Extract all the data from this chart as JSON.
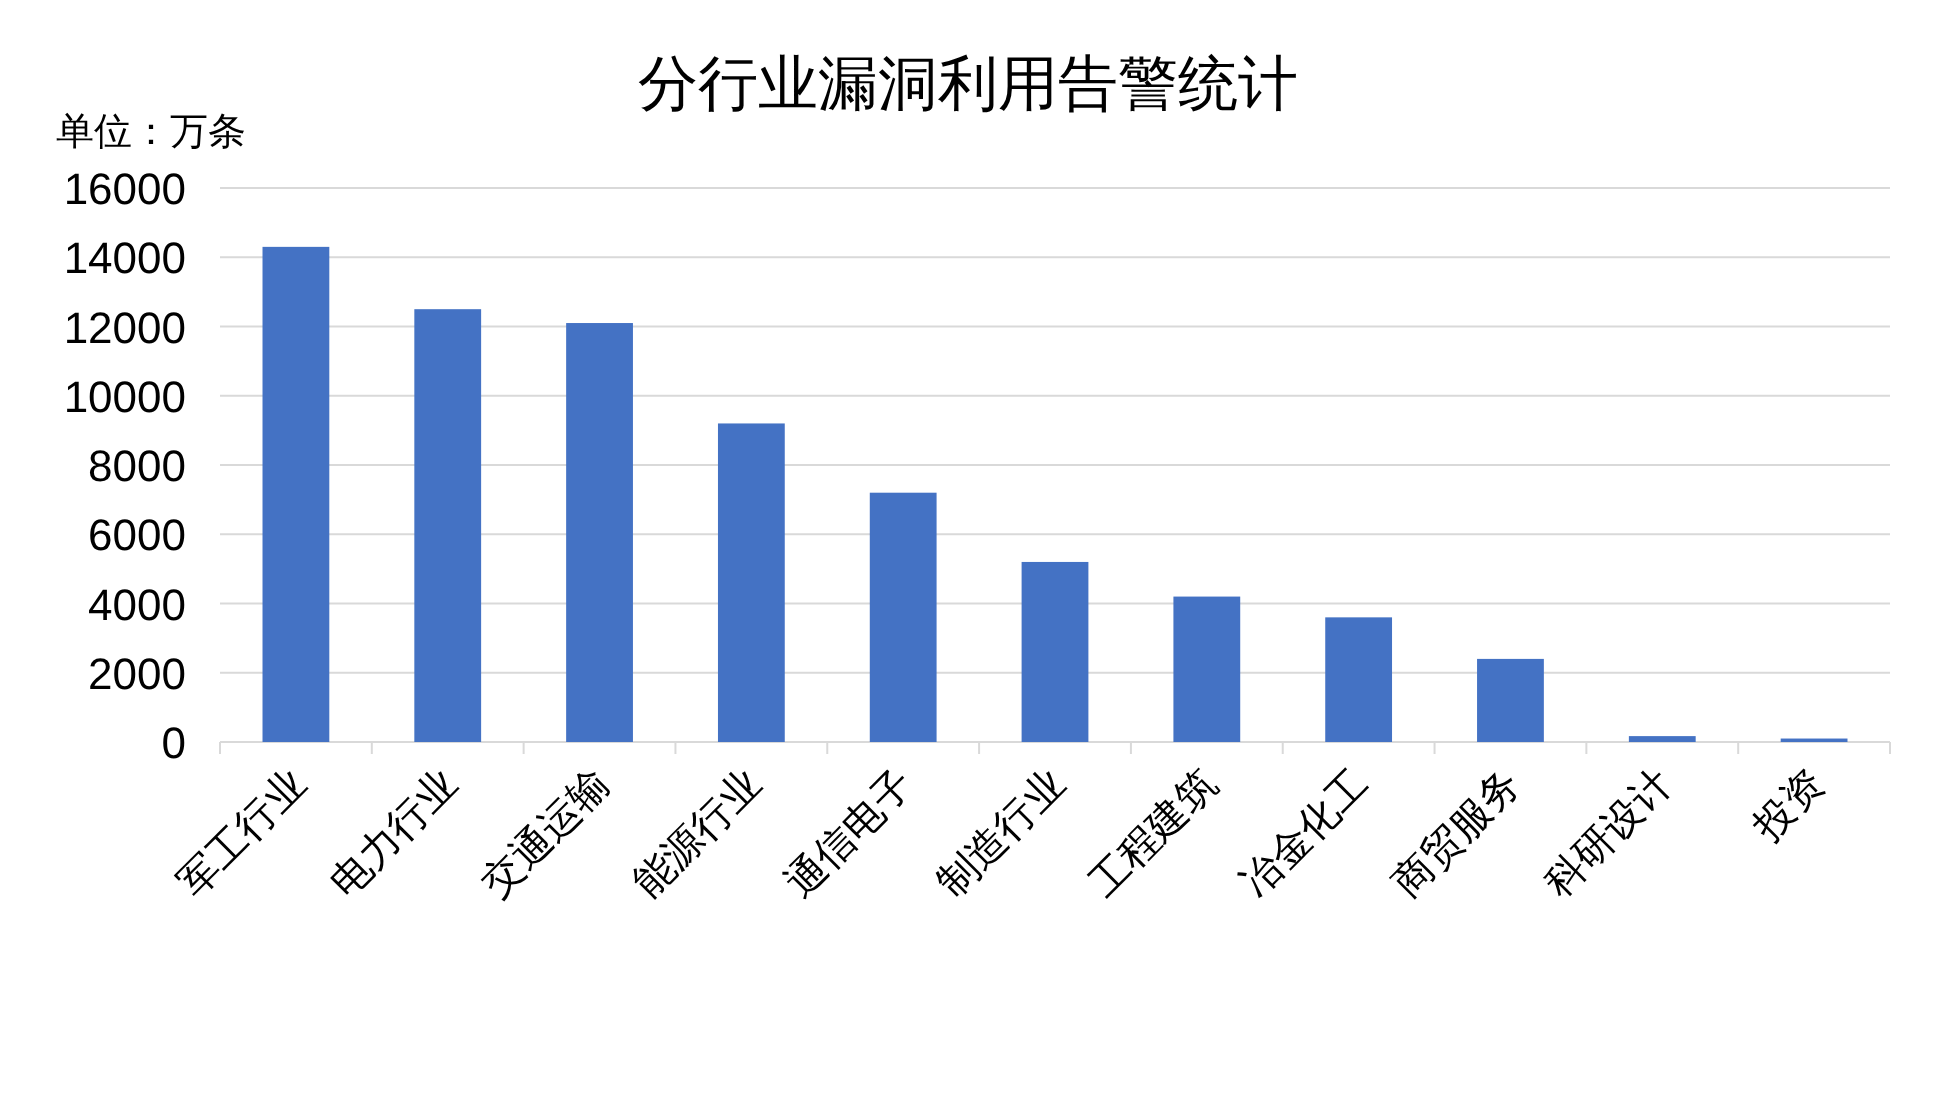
{
  "chart_data": {
    "type": "bar",
    "title": "分行业漏洞利用告警统计",
    "ylabel": "单位：万条",
    "categories": [
      "军工行业",
      "电力行业",
      "交通运输",
      "能源行业",
      "通信电子",
      "制造行业",
      "工程建筑",
      "冶金化工",
      "商贸服务",
      "科研设计",
      "投资"
    ],
    "series": [
      {
        "color": "#4472c4",
        "values": [
          14300,
          12500,
          12100,
          9200,
          7200,
          5200,
          4200,
          3600,
          2400,
          170,
          100
        ]
      }
    ],
    "ylim": [
      0,
      16000
    ],
    "yticks": [
      0,
      2000,
      4000,
      6000,
      8000,
      10000,
      12000,
      14000,
      16000
    ],
    "grid": "y"
  }
}
